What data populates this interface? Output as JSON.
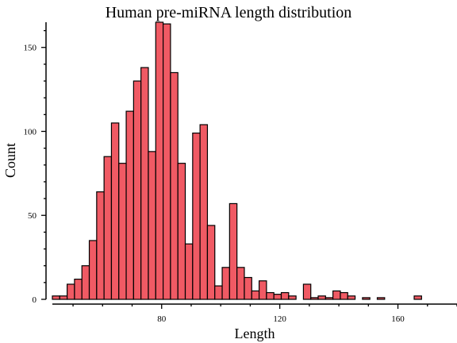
{
  "chart_data": {
    "type": "bar",
    "title": "Human pre-miRNA length distribution",
    "xlabel": "Length",
    "ylabel": "Count",
    "bar_color": "#f05a64",
    "edge_color": "#000000",
    "bin_width": 2.5,
    "bin_start": 43,
    "xlim": [
      43,
      180
    ],
    "ylim": [
      0,
      165
    ],
    "x_ticks": [
      80,
      120,
      160
    ],
    "y_ticks": [
      0,
      50,
      100,
      150
    ],
    "values": [
      2,
      2,
      9,
      12,
      20,
      35,
      64,
      85,
      105,
      81,
      112,
      130,
      138,
      88,
      165,
      164,
      135,
      81,
      33,
      99,
      104,
      44,
      8,
      19,
      57,
      19,
      13,
      5,
      11,
      4,
      3,
      4,
      2,
      0,
      9,
      1,
      2,
      1,
      5,
      4,
      2,
      0,
      1,
      0,
      1,
      0,
      0,
      0,
      0,
      2
    ]
  }
}
